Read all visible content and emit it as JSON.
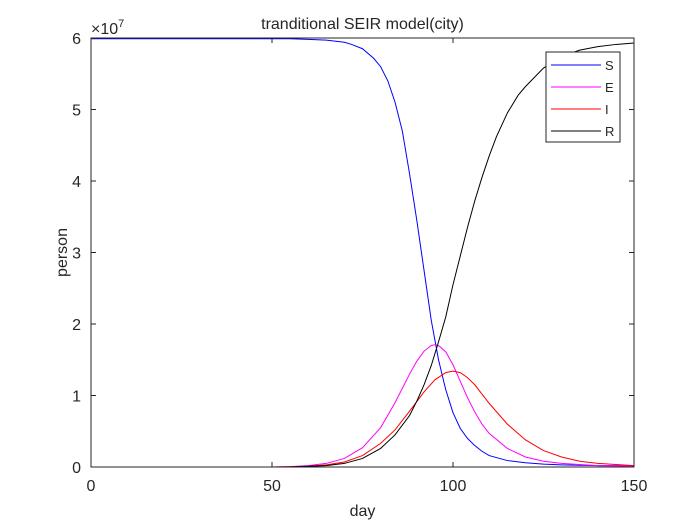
{
  "chart_data": {
    "type": "line",
    "title": "tranditional SEIR model(city)",
    "xlabel": "day",
    "ylabel": "person",
    "exponent_label": "×10",
    "exponent_power": "7",
    "xlim": [
      0,
      150
    ],
    "ylim": [
      0,
      6
    ],
    "xticks": [
      0,
      50,
      100,
      150
    ],
    "yticks": [
      0,
      1,
      2,
      3,
      4,
      5,
      6
    ],
    "grid": false,
    "legend_position": "top-right",
    "series": [
      {
        "name": "S",
        "color": "#0000ff",
        "x": [
          0,
          20,
          40,
          50,
          55,
          60,
          65,
          70,
          72,
          75,
          78,
          80,
          82,
          84,
          86,
          88,
          90,
          92,
          94,
          96,
          98,
          100,
          102,
          104,
          106,
          108,
          110,
          115,
          120,
          125,
          130,
          140,
          150
        ],
        "y": [
          5.99,
          5.99,
          5.99,
          5.99,
          5.99,
          5.98,
          5.97,
          5.94,
          5.91,
          5.85,
          5.72,
          5.6,
          5.4,
          5.1,
          4.7,
          4.1,
          3.45,
          2.75,
          2.05,
          1.5,
          1.08,
          0.76,
          0.54,
          0.4,
          0.3,
          0.22,
          0.16,
          0.09,
          0.06,
          0.04,
          0.03,
          0.02,
          0.02
        ]
      },
      {
        "name": "E",
        "color": "#ff00ff",
        "x": [
          0,
          40,
          50,
          55,
          60,
          65,
          70,
          75,
          80,
          84,
          88,
          90,
          92,
          94,
          95,
          96,
          98,
          100,
          102,
          104,
          106,
          108,
          110,
          115,
          120,
          125,
          130,
          140,
          150
        ],
        "y": [
          0,
          0,
          0,
          0.005,
          0.02,
          0.05,
          0.12,
          0.27,
          0.55,
          0.9,
          1.3,
          1.48,
          1.62,
          1.7,
          1.71,
          1.7,
          1.61,
          1.43,
          1.2,
          0.97,
          0.77,
          0.6,
          0.47,
          0.26,
          0.14,
          0.08,
          0.05,
          0.02,
          0.01
        ]
      },
      {
        "name": "I",
        "color": "#ff0000",
        "x": [
          0,
          40,
          50,
          55,
          60,
          65,
          70,
          75,
          80,
          84,
          88,
          92,
          95,
          98,
          100,
          102,
          104,
          106,
          108,
          110,
          115,
          120,
          125,
          130,
          135,
          140,
          150
        ],
        "y": [
          0,
          0,
          0,
          0.005,
          0.01,
          0.03,
          0.07,
          0.16,
          0.33,
          0.52,
          0.78,
          1.05,
          1.22,
          1.32,
          1.34,
          1.32,
          1.25,
          1.15,
          1.02,
          0.89,
          0.6,
          0.38,
          0.23,
          0.14,
          0.08,
          0.05,
          0.02
        ]
      },
      {
        "name": "R",
        "color": "#000000",
        "x": [
          0,
          40,
          50,
          55,
          60,
          65,
          70,
          75,
          80,
          84,
          88,
          90,
          92,
          94,
          96,
          98,
          100,
          102,
          104,
          106,
          108,
          110,
          112,
          115,
          118,
          120,
          125,
          130,
          135,
          140,
          145,
          150
        ],
        "y": [
          0,
          0,
          0,
          0.002,
          0.01,
          0.02,
          0.05,
          0.12,
          0.26,
          0.45,
          0.72,
          0.92,
          1.15,
          1.42,
          1.75,
          2.1,
          2.55,
          2.95,
          3.35,
          3.72,
          4.05,
          4.35,
          4.62,
          4.95,
          5.2,
          5.32,
          5.58,
          5.74,
          5.83,
          5.88,
          5.91,
          5.93
        ]
      }
    ]
  }
}
